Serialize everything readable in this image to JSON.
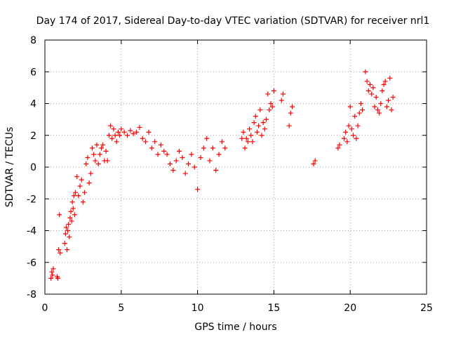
{
  "chart_data": {
    "type": "scatter",
    "title": "Day 174 of 2017, Sidereal Day-to-day VTEC variation (SDTVAR) for receiver nrl1",
    "xlabel": "GPS time / hours",
    "ylabel": "SDTVAR / TECUs",
    "xlim": [
      0,
      25
    ],
    "ylim": [
      -8,
      8
    ],
    "x_ticks": [
      "0",
      "5",
      "10",
      "15",
      "20",
      "25"
    ],
    "y_ticks": [
      "-8",
      "-6",
      "-4",
      "-2",
      "0",
      "2",
      "4",
      "6",
      "8"
    ],
    "grid": true,
    "marker": "+",
    "color": "#ff0000",
    "series": [
      {
        "name": "SDTVAR",
        "x": [
          0.4,
          0.45,
          0.5,
          0.55,
          0.8,
          0.85,
          0.9,
          0.95,
          1.0,
          1.3,
          1.35,
          1.4,
          1.45,
          1.5,
          1.55,
          1.6,
          1.65,
          1.7,
          1.75,
          1.8,
          1.85,
          1.9,
          1.95,
          2.0,
          2.1,
          2.2,
          2.3,
          2.4,
          2.5,
          2.6,
          2.7,
          2.8,
          2.9,
          3.0,
          3.1,
          3.2,
          3.3,
          3.4,
          3.5,
          3.6,
          3.7,
          3.8,
          3.9,
          4.0,
          4.1,
          4.2,
          4.3,
          4.4,
          4.5,
          4.6,
          4.7,
          4.8,
          4.9,
          5.0,
          5.2,
          5.4,
          5.6,
          5.8,
          6.0,
          6.2,
          6.4,
          6.6,
          6.8,
          7.0,
          7.2,
          7.4,
          7.6,
          7.8,
          8.0,
          8.2,
          8.4,
          8.6,
          8.8,
          9.0,
          9.2,
          9.4,
          9.6,
          9.8,
          10.0,
          10.2,
          10.4,
          10.6,
          10.8,
          11.0,
          11.2,
          11.4,
          11.6,
          11.8,
          12.9,
          13.0,
          13.1,
          13.2,
          13.3,
          13.4,
          13.5,
          13.6,
          13.7,
          13.8,
          13.9,
          14.0,
          14.1,
          14.2,
          14.3,
          14.4,
          14.5,
          14.6,
          14.7,
          14.8,
          14.9,
          15.0,
          15.5,
          15.6,
          16.0,
          16.1,
          16.2,
          17.6,
          17.7,
          19.2,
          19.3,
          19.6,
          19.7,
          19.8,
          19.9,
          20.0,
          20.1,
          20.2,
          20.3,
          20.4,
          20.5,
          20.6,
          20.7,
          20.8,
          21.0,
          21.1,
          21.2,
          21.3,
          21.4,
          21.5,
          21.6,
          21.7,
          21.8,
          21.9,
          22.0,
          22.1,
          22.2,
          22.3,
          22.4,
          22.5,
          22.6,
          22.7,
          22.8
        ],
        "y": [
          -7.0,
          -6.6,
          -6.8,
          -6.4,
          -6.9,
          -7.0,
          -5.2,
          -3.0,
          -5.4,
          -4.8,
          -4.2,
          -3.8,
          -5.2,
          -4.0,
          -3.6,
          -4.4,
          -3.2,
          -2.8,
          -3.4,
          -2.2,
          -2.6,
          -1.8,
          -3.0,
          -1.6,
          -0.6,
          -1.8,
          -1.2,
          -0.8,
          -2.2,
          -1.6,
          0.2,
          0.6,
          -1.0,
          -0.4,
          1.2,
          0.8,
          0.4,
          1.4,
          0.2,
          0.8,
          1.2,
          1.4,
          0.4,
          1.0,
          0.4,
          2.0,
          2.6,
          1.8,
          2.4,
          2.0,
          1.6,
          2.2,
          2.0,
          2.4,
          2.2,
          2.0,
          2.3,
          2.1,
          2.2,
          2.5,
          1.8,
          1.6,
          2.2,
          1.2,
          1.6,
          0.8,
          1.4,
          1.0,
          0.8,
          0.2,
          -0.2,
          0.4,
          1.0,
          0.6,
          -0.4,
          0.2,
          0.8,
          0.0,
          -1.4,
          0.6,
          1.2,
          1.8,
          0.4,
          1.2,
          -0.2,
          0.8,
          1.6,
          1.2,
          1.8,
          2.2,
          1.2,
          1.8,
          1.6,
          2.4,
          2.0,
          1.6,
          2.8,
          3.2,
          2.2,
          2.6,
          3.6,
          2.0,
          2.8,
          2.4,
          3.0,
          4.6,
          3.6,
          4.0,
          3.8,
          4.8,
          4.2,
          4.6,
          2.6,
          3.4,
          3.8,
          0.2,
          0.4,
          1.2,
          1.4,
          1.8,
          2.2,
          1.6,
          2.6,
          3.8,
          2.4,
          2.0,
          3.2,
          1.8,
          2.6,
          3.4,
          4.0,
          3.6,
          6.0,
          5.4,
          4.8,
          5.2,
          4.6,
          5.0,
          3.8,
          4.4,
          3.6,
          3.4,
          4.0,
          4.8,
          5.2,
          5.4,
          3.8,
          4.2,
          5.6,
          3.6,
          4.4
        ]
      }
    ]
  }
}
